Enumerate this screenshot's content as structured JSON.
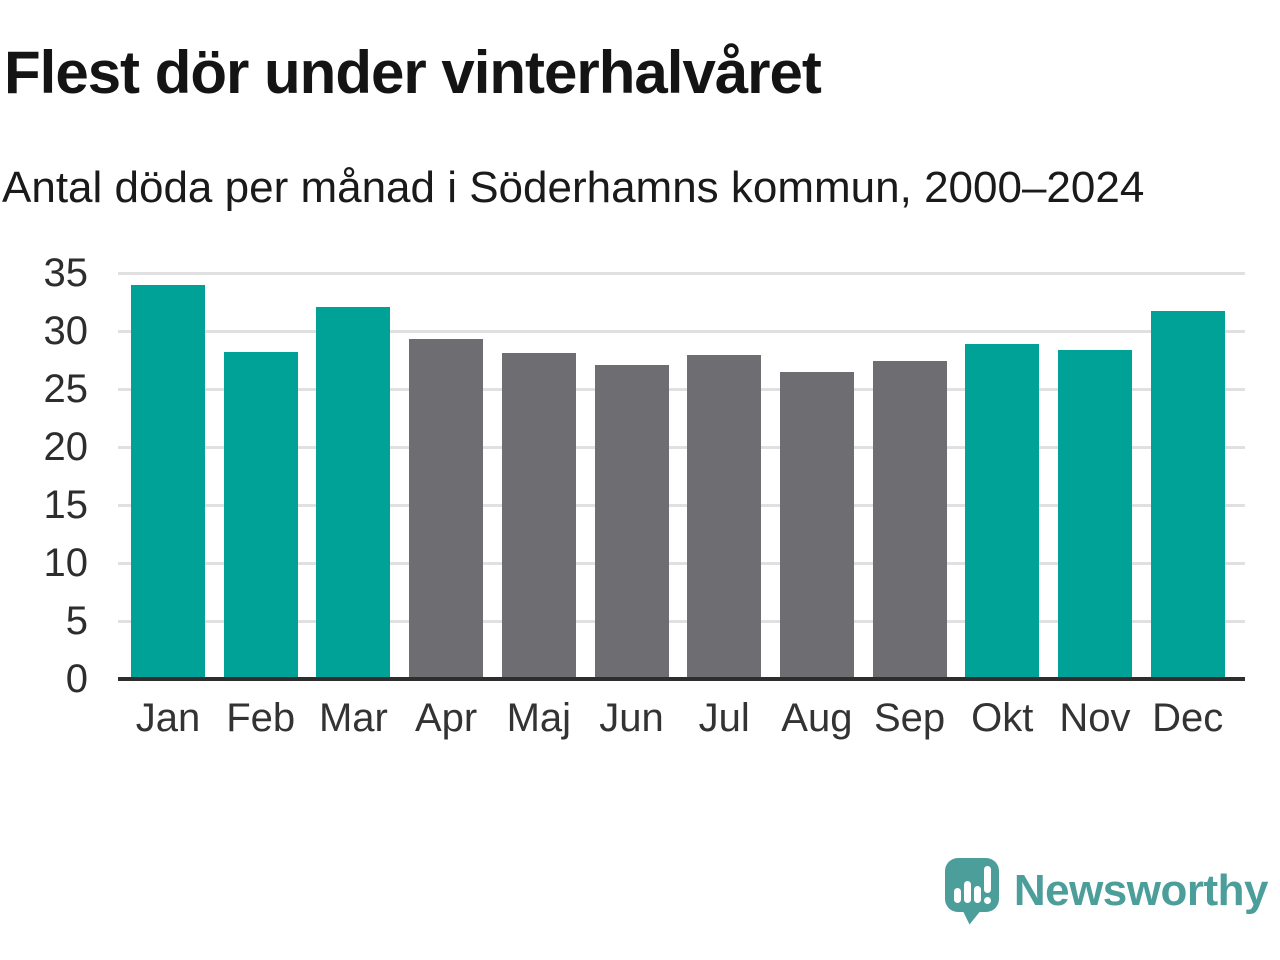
{
  "chart_data": {
    "type": "bar",
    "title": "Flest dör under vinterhalvåret",
    "subtitle": "Antal döda per månad i Söderhamns kommun, 2000–2024",
    "categories": [
      "Jan",
      "Feb",
      "Mar",
      "Apr",
      "Maj",
      "Jun",
      "Jul",
      "Aug",
      "Sep",
      "Okt",
      "Nov",
      "Dec"
    ],
    "values": [
      34.0,
      28.2,
      32.1,
      29.3,
      28.1,
      27.1,
      27.9,
      26.5,
      27.4,
      28.9,
      28.4,
      31.7
    ],
    "bar_groups": [
      "winter",
      "winter",
      "winter",
      "summer",
      "summer",
      "summer",
      "summer",
      "summer",
      "summer",
      "winter",
      "winter",
      "winter"
    ],
    "palette": {
      "winter": "#00A196",
      "summer": "#6D6D72"
    },
    "xlabel": "",
    "ylabel": "",
    "ylim": [
      0,
      35
    ],
    "yticks": [
      0,
      5,
      10,
      15,
      20,
      25,
      30,
      35
    ],
    "grid": true,
    "legend": false
  },
  "footer": {
    "brand": "Newsworthy",
    "brand_color": "#4C9E9B",
    "logo_icon": "newsworthy-speech-bubble-bar-chart-icon"
  },
  "style": {
    "grid_color": "#e0e0e0",
    "axis_color": "#2e2e2e",
    "title_color": "#141414",
    "tick_label_color": "#2d2d2d"
  }
}
